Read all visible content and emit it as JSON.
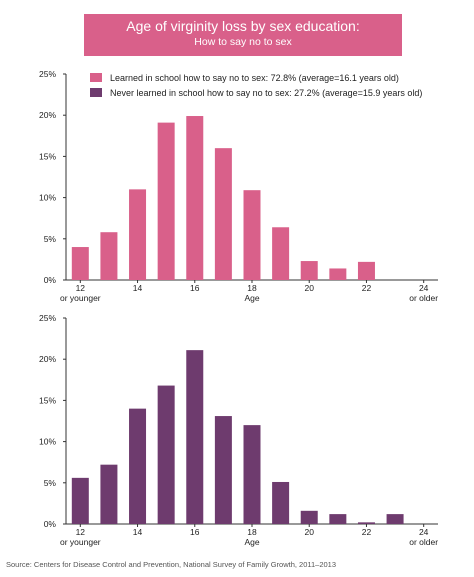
{
  "header": {
    "title": "Age of virginity loss by sex education:",
    "subtitle": "How to say no to sex"
  },
  "source": "Source: Centers for Disease Control and Prevention, National Survey of Family Growth, 2011–2013",
  "colors": {
    "pink": "#d9608a",
    "purple": "#6e3b6e",
    "banner": "#d9608a"
  },
  "chart_data": [
    {
      "type": "bar",
      "categories": [
        "12 or younger",
        "13",
        "14",
        "15",
        "16",
        "17",
        "18",
        "19",
        "20",
        "21",
        "22",
        "23",
        "24 or older"
      ],
      "xticks": [
        {
          "index": 0,
          "line1": "12",
          "line2": "or younger"
        },
        {
          "index": 2,
          "line1": "14",
          "line2": ""
        },
        {
          "index": 4,
          "line1": "16",
          "line2": ""
        },
        {
          "index": 6,
          "line1": "18",
          "line2": ""
        },
        {
          "index": 8,
          "line1": "20",
          "line2": ""
        },
        {
          "index": 10,
          "line1": "22",
          "line2": ""
        },
        {
          "index": 12,
          "line1": "24",
          "line2": "or older"
        }
      ],
      "series": [
        {
          "name": "Learned in school how to say no to sex: 72.8% (average=16.1 years old)",
          "values": [
            4.0,
            5.8,
            11.0,
            19.1,
            19.9,
            16.0,
            10.9,
            6.4,
            2.3,
            1.4,
            2.2,
            0,
            0
          ]
        }
      ],
      "yticks": [
        "0%",
        "5%",
        "10%",
        "15%",
        "20%",
        "25%"
      ],
      "ylim": [
        0,
        25
      ],
      "xlabel": "Age",
      "ylabel": "",
      "color": "#d9608a",
      "legend": "top"
    },
    {
      "type": "bar",
      "categories": [
        "12 or younger",
        "13",
        "14",
        "15",
        "16",
        "17",
        "18",
        "19",
        "20",
        "21",
        "22",
        "23",
        "24 or older"
      ],
      "xticks": [
        {
          "index": 0,
          "line1": "12",
          "line2": "or younger"
        },
        {
          "index": 2,
          "line1": "14",
          "line2": ""
        },
        {
          "index": 4,
          "line1": "16",
          "line2": ""
        },
        {
          "index": 6,
          "line1": "18",
          "line2": ""
        },
        {
          "index": 8,
          "line1": "20",
          "line2": ""
        },
        {
          "index": 10,
          "line1": "22",
          "line2": ""
        },
        {
          "index": 12,
          "line1": "24",
          "line2": "or older"
        }
      ],
      "series": [
        {
          "name": "Never learned in school how to say no to sex: 27.2% (average=15.9 years old)",
          "values": [
            5.6,
            7.2,
            14.0,
            16.8,
            21.1,
            13.1,
            12.0,
            5.1,
            1.6,
            1.2,
            0.2,
            1.2,
            0
          ]
        }
      ],
      "yticks": [
        "0%",
        "5%",
        "10%",
        "15%",
        "20%",
        "25%"
      ],
      "ylim": [
        0,
        25
      ],
      "xlabel": "Age",
      "ylabel": "",
      "color": "#6e3b6e",
      "legend": "top"
    }
  ]
}
